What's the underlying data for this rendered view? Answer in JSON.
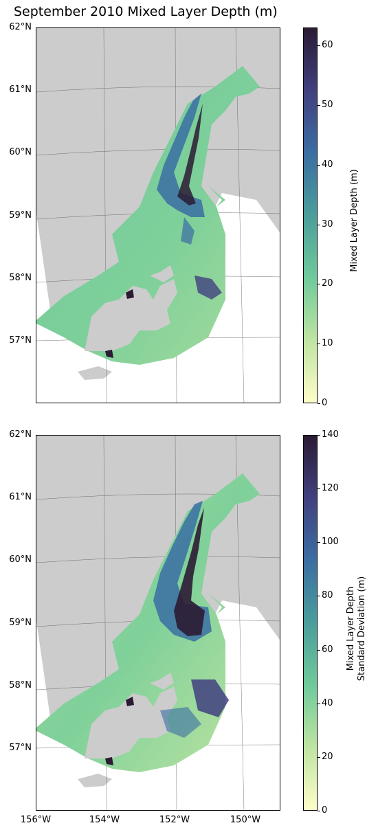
{
  "title": "September 2010 Mixed Layer Depth (m)",
  "lat_labels": [
    "62°N",
    "61°N",
    "60°N",
    "59°N",
    "58°N",
    "57°N"
  ],
  "lon_labels": [
    "156°W",
    "154°W",
    "152°W",
    "150°W"
  ],
  "colors": {
    "land": "#cccccc",
    "ocean_background": "#ffffff",
    "colormap": [
      "#fefdc9",
      "#bfe4a1",
      "#6fca9b",
      "#4a9e9b",
      "#3b6ea3",
      "#41407f",
      "#2b1b33"
    ]
  },
  "panels": [
    {
      "colorbar_label": "Mixed Layer Depth (m)",
      "colorbar_ticks": [
        "0",
        "10",
        "20",
        "30",
        "40",
        "50",
        "60"
      ],
      "colorbar_range": [
        0,
        63
      ]
    },
    {
      "colorbar_label_line1": "Mixed Layer Depth",
      "colorbar_label_line2": "Standard Deviation (m)",
      "colorbar_ticks": [
        "0",
        "20",
        "40",
        "60",
        "80",
        "100",
        "120",
        "140"
      ],
      "colorbar_range": [
        0,
        140
      ]
    }
  ]
}
